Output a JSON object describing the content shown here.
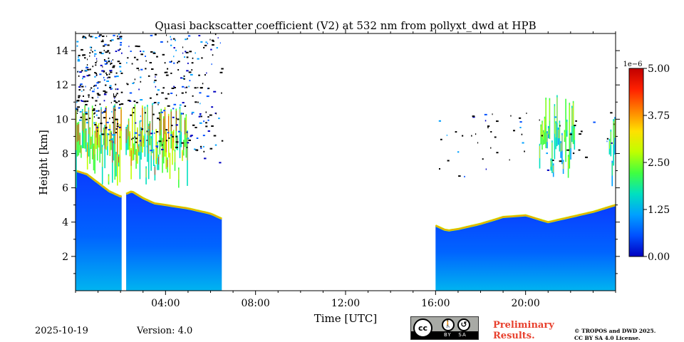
{
  "chart_data": {
    "type": "heatmap",
    "title": "Quasi backscatter coefficient (V2) at 532 nm from pollyxt_dwd at HPB",
    "xlabel": "Time [UTC]",
    "ylabel": "Height [km]",
    "xlim_hours": [
      0,
      24
    ],
    "ylim_km": [
      0,
      15
    ],
    "x_ticks": [
      {
        "hour": 4,
        "label": "04:00"
      },
      {
        "hour": 8,
        "label": "08:00"
      },
      {
        "hour": 12,
        "label": "12:00"
      },
      {
        "hour": 16,
        "label": "16:00"
      },
      {
        "hour": 20,
        "label": "20:00"
      }
    ],
    "y_ticks": [
      {
        "value": 2,
        "label": "2"
      },
      {
        "value": 4,
        "label": "4"
      },
      {
        "value": 6,
        "label": "6"
      },
      {
        "value": 8,
        "label": "8"
      },
      {
        "value": 10,
        "label": "10"
      },
      {
        "value": 12,
        "label": "12"
      },
      {
        "value": 14,
        "label": "14"
      }
    ],
    "colorbar": {
      "exponent_label": "1e−6",
      "range": [
        0.0,
        5.0
      ],
      "ticks": [
        {
          "value": 0.0,
          "label": "0.00"
        },
        {
          "value": 1.25,
          "label": "1.25"
        },
        {
          "value": 2.5,
          "label": "2.50"
        },
        {
          "value": 3.75,
          "label": "3.75"
        },
        {
          "value": 5.0,
          "label": "5.00"
        }
      ],
      "colormap": [
        "#0000c0",
        "#0050ff",
        "#00a0ff",
        "#00e0c0",
        "#40ff40",
        "#c0ff00",
        "#ffe000",
        "#ff8000",
        "#ff2000",
        "#c00000"
      ]
    },
    "data_segments_hours": [
      [
        0.0,
        2.05
      ],
      [
        2.25,
        6.5
      ],
      [
        16.0,
        24.0
      ]
    ],
    "aerosol_layer_top_km": [
      {
        "hour": 0.0,
        "value": 7.0
      },
      {
        "hour": 0.5,
        "value": 6.8
      },
      {
        "hour": 1.0,
        "value": 6.3
      },
      {
        "hour": 1.5,
        "value": 5.8
      },
      {
        "hour": 2.0,
        "value": 5.5
      },
      {
        "hour": 2.5,
        "value": 5.8
      },
      {
        "hour": 3.0,
        "value": 5.4
      },
      {
        "hour": 3.5,
        "value": 5.1
      },
      {
        "hour": 4.0,
        "value": 5.0
      },
      {
        "hour": 5.0,
        "value": 4.8
      },
      {
        "hour": 6.0,
        "value": 4.5
      },
      {
        "hour": 6.5,
        "value": 4.2
      },
      {
        "hour": 16.0,
        "value": 3.8
      },
      {
        "hour": 16.5,
        "value": 3.5
      },
      {
        "hour": 17.0,
        "value": 3.6
      },
      {
        "hour": 18.0,
        "value": 3.9
      },
      {
        "hour": 19.0,
        "value": 4.3
      },
      {
        "hour": 20.0,
        "value": 4.4
      },
      {
        "hour": 21.0,
        "value": 4.0
      },
      {
        "hour": 22.0,
        "value": 4.3
      },
      {
        "hour": 23.0,
        "value": 4.6
      },
      {
        "hour": 24.0,
        "value": 5.0
      }
    ],
    "cloud_layers": [
      {
        "hour_start": 0.0,
        "hour_end": 5.0,
        "base_km": 6.0,
        "top_km": 11.0,
        "peak_value": 4.5
      },
      {
        "hour_start": 20.6,
        "hour_end": 22.2,
        "base_km": 6.5,
        "top_km": 11.5,
        "peak_value": 3.5
      },
      {
        "hour_start": 23.7,
        "hour_end": 24.0,
        "base_km": 6.0,
        "top_km": 10.5,
        "peak_value": 3.0
      }
    ]
  },
  "footer": {
    "date": "2025-10-19",
    "version": "Version: 4.0",
    "preliminary_line1": "Preliminary",
    "preliminary_line2": "Results.",
    "copyright_line1": "© TROPOS and DWD 2025.",
    "copyright_line2": "CC BY SA 4.0 License.",
    "license_badge": {
      "by": "BY",
      "sa": "SA"
    }
  }
}
